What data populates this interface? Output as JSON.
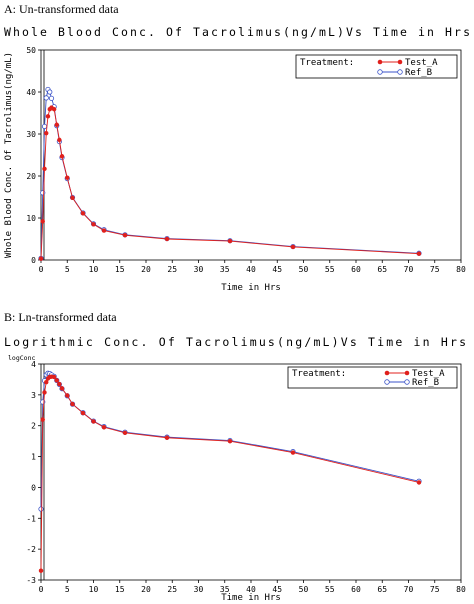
{
  "chart_data": [
    {
      "type": "line",
      "panel_label": "A: Un-transformed data",
      "title": "Whole Blood Conc. Of Tacrolimus(ng/mL)Vs Time in Hrs",
      "xlabel": "Time in Hrs",
      "ylabel": "Whole Blood Conc. Of Tacrolimus(ng/mL)",
      "xlim": [
        0,
        80
      ],
      "ylim": [
        0,
        50
      ],
      "xticks": [
        0,
        5,
        10,
        15,
        20,
        25,
        30,
        35,
        40,
        45,
        50,
        55,
        60,
        65,
        70,
        75,
        80
      ],
      "yticks": [
        0,
        10,
        20,
        30,
        40,
        50
      ],
      "grid": false,
      "legend": {
        "title": "Treatment:",
        "placement": "top-right"
      },
      "series": [
        {
          "name": "Test_A",
          "color": "#e0201c",
          "marker": "filled-circle",
          "x": [
            0,
            0.33,
            0.67,
            1,
            1.33,
            1.67,
            2,
            2.5,
            3,
            3.5,
            4,
            5,
            6,
            8,
            10,
            12,
            16,
            24,
            36,
            48,
            72
          ],
          "y": [
            0.3,
            9.2,
            21.7,
            30.2,
            34.2,
            35.9,
            36.3,
            35.9,
            32.2,
            28.6,
            24.7,
            19.6,
            14.8,
            11.1,
            8.5,
            7.0,
            5.9,
            5.0,
            4.5,
            3.1,
            1.5
          ]
        },
        {
          "name": "Ref_B",
          "color": "#3b53c8",
          "marker": "open-circle",
          "x": [
            0,
            0.33,
            0.67,
            1,
            1.33,
            1.67,
            2,
            2.5,
            3,
            3.5,
            4,
            5,
            6,
            8,
            10,
            12,
            16,
            24,
            36,
            48,
            72
          ],
          "y": [
            0.4,
            16.0,
            31.8,
            38.6,
            40.6,
            40.0,
            38.5,
            36.5,
            32.0,
            28.2,
            24.4,
            19.4,
            14.9,
            11.2,
            8.6,
            7.2,
            6.0,
            5.1,
            4.6,
            3.2,
            1.6
          ]
        }
      ]
    },
    {
      "type": "line",
      "panel_label": "B: Ln-transformed data",
      "title": "Logrithmic Conc. Of Tacrolimus(ng/mL)Vs Time in Hrs",
      "xlabel": "Time in Hrs",
      "ylabel": "logConc",
      "xlim": [
        0,
        80
      ],
      "ylim": [
        -3,
        4
      ],
      "xticks": [
        0,
        5,
        10,
        15,
        20,
        25,
        30,
        35,
        40,
        45,
        50,
        55,
        60,
        65,
        70,
        75,
        80
      ],
      "yticks": [
        -3,
        -2,
        -1,
        0,
        1,
        2,
        3,
        4
      ],
      "grid": false,
      "legend": {
        "title": "Treatment:",
        "placement": "top-right"
      },
      "series": [
        {
          "name": "Test_A",
          "color": "#e0201c",
          "marker": "filled-circle",
          "x": [
            0,
            0.33,
            0.67,
            1,
            1.33,
            1.67,
            2,
            2.5,
            3,
            3.5,
            4,
            5,
            6,
            8,
            10,
            12,
            16,
            24,
            36,
            48,
            72
          ],
          "y": [
            -2.7,
            2.2,
            3.08,
            3.41,
            3.53,
            3.58,
            3.59,
            3.58,
            3.47,
            3.35,
            3.21,
            2.98,
            2.7,
            2.41,
            2.14,
            1.95,
            1.77,
            1.61,
            1.5,
            1.13,
            0.16
          ]
        },
        {
          "name": "Ref_B",
          "color": "#3b53c8",
          "marker": "open-circle",
          "x": [
            0,
            0.33,
            0.67,
            1,
            1.33,
            1.67,
            2,
            2.5,
            3,
            3.5,
            4,
            5,
            6,
            8,
            10,
            12,
            16,
            24,
            36,
            48,
            72
          ],
          "y": [
            -0.7,
            2.77,
            3.46,
            3.65,
            3.7,
            3.69,
            3.65,
            3.6,
            3.47,
            3.34,
            3.2,
            2.97,
            2.7,
            2.42,
            2.15,
            1.97,
            1.79,
            1.63,
            1.52,
            1.16,
            0.2
          ]
        }
      ]
    }
  ]
}
